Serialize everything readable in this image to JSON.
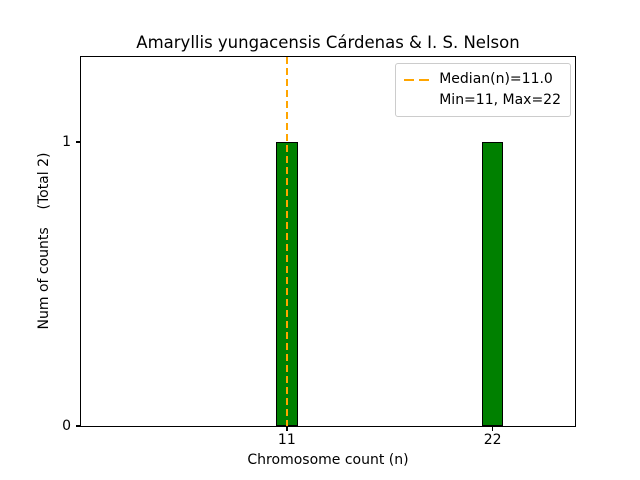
{
  "chart_data": {
    "type": "bar",
    "title": "Amaryllis yungacensis Cárdenas & I. S. Nelson",
    "xlabel": "Chromosome count (n)",
    "ylabel": "Num of counts    (Total 2)",
    "total_counts": 2,
    "categories": [
      11,
      22
    ],
    "values": [
      1,
      1
    ],
    "xticks": [
      11,
      22
    ],
    "yticks": [
      0,
      1
    ],
    "xtick_labels": [
      "11",
      "22"
    ],
    "ytick_labels": [
      "0",
      "1"
    ],
    "xlim": [
      0,
      26.4
    ],
    "ylim": [
      0,
      1.3
    ],
    "grid": false,
    "bar_width": 1.15,
    "bar_color": "#008000",
    "bar_edge_color": "#000000",
    "median": {
      "value": 11.0,
      "line_color": "#ffa500",
      "line_style": "dashed"
    },
    "legend": {
      "position": "upper right",
      "entries": [
        {
          "label": "Median(n)=11.0",
          "swatch": "orange-dashed-line"
        },
        {
          "label": "Min=11, Max=22",
          "swatch": null
        }
      ]
    }
  }
}
